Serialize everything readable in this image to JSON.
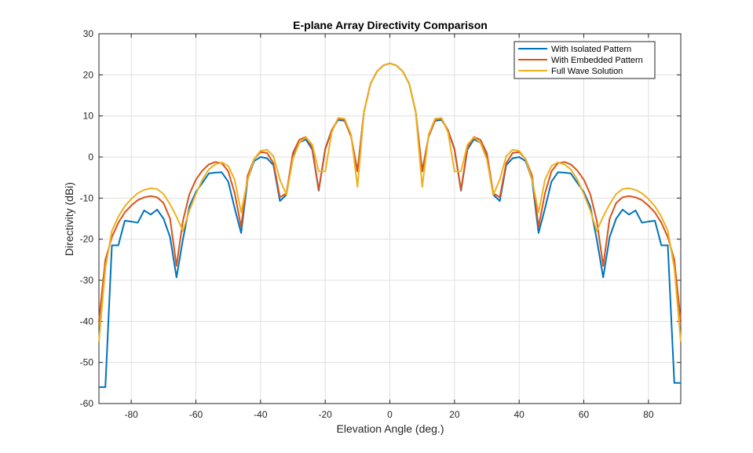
{
  "chart_data": {
    "type": "line",
    "title": "E-plane Array Directivity Comparison",
    "xlabel": "Elevation Angle (deg.)",
    "ylabel": "Directivity (dBi)",
    "xlim": [
      -90,
      90
    ],
    "ylim": [
      -60,
      30
    ],
    "xticks": [
      -80,
      -60,
      -40,
      -20,
      0,
      20,
      40,
      60,
      80
    ],
    "yticks": [
      -60,
      -50,
      -40,
      -30,
      -20,
      -10,
      0,
      10,
      20,
      30
    ],
    "grid": true,
    "legend_position": "top-right",
    "series": [
      {
        "name": "With Isolated Pattern",
        "color": "#0072BD",
        "x": [
          -90,
          -88,
          -86,
          -84,
          -82,
          -80,
          -78,
          -76,
          -74,
          -72,
          -70,
          -68,
          -66,
          -64,
          -62,
          -60,
          -58,
          -56,
          -54,
          -52,
          -50,
          -48,
          -46,
          -44,
          -42,
          -40,
          -38,
          -36,
          -34,
          -32,
          -30,
          -28,
          -26,
          -24,
          -22,
          -20,
          -18,
          -16,
          -14,
          -12,
          -10,
          -8,
          -6,
          -4,
          -2,
          0,
          2,
          4,
          6,
          8,
          10,
          12,
          14,
          16,
          18,
          20,
          22,
          24,
          26,
          28,
          30,
          32,
          34,
          36,
          38,
          40,
          42,
          44,
          46,
          48,
          50,
          52,
          54,
          56,
          58,
          60,
          62,
          64,
          66,
          68,
          70,
          72,
          74,
          76,
          78,
          80,
          82,
          84,
          86,
          88,
          90
        ],
        "y": [
          -56,
          -56,
          -21.5,
          -21.5,
          -15.5,
          -15.7,
          -16,
          -13,
          -14,
          -12.8,
          -15,
          -19.5,
          -29.3,
          -20,
          -12,
          -8.5,
          -6.3,
          -4,
          -3.8,
          -3.7,
          -6,
          -12.5,
          -18.5,
          -5.5,
          -1,
          0,
          -0.3,
          -2,
          -10.7,
          -9.2,
          0,
          3.5,
          4.3,
          1.8,
          -8.2,
          2,
          6.5,
          9,
          8.8,
          5,
          -3.5,
          11,
          17.8,
          20.8,
          22.3,
          22.8,
          22.3,
          20.8,
          17.8,
          11,
          -3.5,
          5,
          8.8,
          9,
          6.5,
          2,
          -8.2,
          1.8,
          4.3,
          3.5,
          0,
          -9.2,
          -10.7,
          -2,
          -0.3,
          0,
          -1,
          -5.5,
          -18.5,
          -12.5,
          -6,
          -3.7,
          -3.8,
          -4,
          -6.3,
          -8.5,
          -12,
          -20,
          -29.3,
          -19.5,
          -15,
          -12.8,
          -14,
          -13,
          -16,
          -15.7,
          -15.5,
          -21.5,
          -21.5,
          -55,
          -55
        ]
      },
      {
        "name": "With Embedded Pattern",
        "color": "#D95319",
        "x": [
          -90,
          -88,
          -86,
          -84,
          -82,
          -80,
          -78,
          -76,
          -74,
          -72,
          -70,
          -68,
          -66,
          -64,
          -62,
          -60,
          -58,
          -56,
          -54,
          -52,
          -50,
          -48,
          -46,
          -44,
          -42,
          -40,
          -38,
          -36,
          -34,
          -32,
          -30,
          -28,
          -26,
          -24,
          -22,
          -20,
          -18,
          -16,
          -14,
          -12,
          -10,
          -8,
          -6,
          -4,
          -2,
          0,
          2,
          4,
          6,
          8,
          10,
          12,
          14,
          16,
          18,
          20,
          22,
          24,
          26,
          28,
          30,
          32,
          34,
          36,
          38,
          40,
          42,
          44,
          46,
          48,
          50,
          52,
          54,
          56,
          58,
          60,
          62,
          64,
          66,
          68,
          70,
          72,
          74,
          76,
          78,
          80,
          82,
          84,
          86,
          88,
          90
        ],
        "y": [
          -40,
          -25,
          -19.5,
          -16,
          -13.5,
          -11.8,
          -10.5,
          -9.8,
          -9.5,
          -9.8,
          -11.2,
          -15,
          -26.5,
          -15.5,
          -9,
          -5.5,
          -3.3,
          -1.8,
          -1.2,
          -1.5,
          -3.5,
          -8.8,
          -17,
          -4.5,
          -0.5,
          1.2,
          1,
          -1.5,
          -9.8,
          -8.8,
          1,
          4.2,
          4.9,
          2.2,
          -8,
          1.8,
          6.5,
          9.3,
          9,
          5,
          -3.5,
          11,
          17.8,
          20.8,
          22.3,
          22.8,
          22.3,
          20.8,
          17.8,
          11,
          -3.5,
          5,
          9,
          9.3,
          6.5,
          1.8,
          -8,
          2.2,
          4.9,
          4.2,
          1,
          -8.8,
          -9.8,
          -1.5,
          1,
          1.2,
          -0.5,
          -4.5,
          -17,
          -8.8,
          -3.5,
          -1.5,
          -1.2,
          -1.8,
          -3.3,
          -5.5,
          -9,
          -15.5,
          -26.5,
          -15,
          -11.2,
          -9.8,
          -9.5,
          -9.8,
          -10.5,
          -11.8,
          -13.5,
          -16,
          -19.5,
          -25,
          -40
        ]
      },
      {
        "name": "Full Wave Solution",
        "color": "#EDB120",
        "x": [
          -90,
          -88,
          -86,
          -84,
          -82,
          -80,
          -78,
          -76,
          -74,
          -72,
          -70,
          -68,
          -66,
          -64,
          -62,
          -60,
          -58,
          -56,
          -54,
          -52,
          -50,
          -48,
          -46,
          -44,
          -42,
          -40,
          -38,
          -36,
          -34,
          -32,
          -30,
          -28,
          -26,
          -24,
          -22,
          -20,
          -18,
          -16,
          -14,
          -12,
          -10,
          -8,
          -6,
          -4,
          -2,
          0,
          2,
          4,
          6,
          8,
          10,
          12,
          14,
          16,
          18,
          20,
          22,
          24,
          26,
          28,
          30,
          32,
          34,
          36,
          38,
          40,
          42,
          44,
          46,
          48,
          50,
          52,
          54,
          56,
          58,
          60,
          62,
          64,
          66,
          68,
          70,
          72,
          74,
          76,
          78,
          80,
          82,
          84,
          86,
          88,
          90
        ],
        "y": [
          -45,
          -27,
          -18,
          -14.5,
          -12,
          -10.2,
          -8.8,
          -8,
          -7.6,
          -7.8,
          -9,
          -11.5,
          -14.5,
          -18,
          -13,
          -9,
          -5.5,
          -3,
          -1.8,
          -1.3,
          -2.2,
          -5.5,
          -13.5,
          -5.5,
          -0.5,
          1.5,
          1.8,
          0.2,
          -5.5,
          -9.2,
          -0.5,
          3.5,
          4.8,
          3,
          -3.5,
          -3.5,
          6,
          9.5,
          9.3,
          5.5,
          -7.3,
          11,
          17.8,
          20.8,
          22.3,
          22.8,
          22.3,
          20.8,
          17.8,
          11,
          -7.3,
          5.5,
          9.3,
          9.5,
          6,
          -3.5,
          -3.5,
          3,
          4.8,
          3.5,
          -0.5,
          -9.2,
          -5.5,
          0.2,
          1.8,
          1.5,
          -0.5,
          -5.5,
          -13.5,
          -5.5,
          -2.2,
          -1.3,
          -1.8,
          -3,
          -5.5,
          -9,
          -13,
          -18,
          -14.5,
          -11.5,
          -9,
          -7.8,
          -7.6,
          -8,
          -8.8,
          -10.2,
          -12,
          -14.5,
          -18,
          -27,
          -45
        ]
      }
    ]
  }
}
